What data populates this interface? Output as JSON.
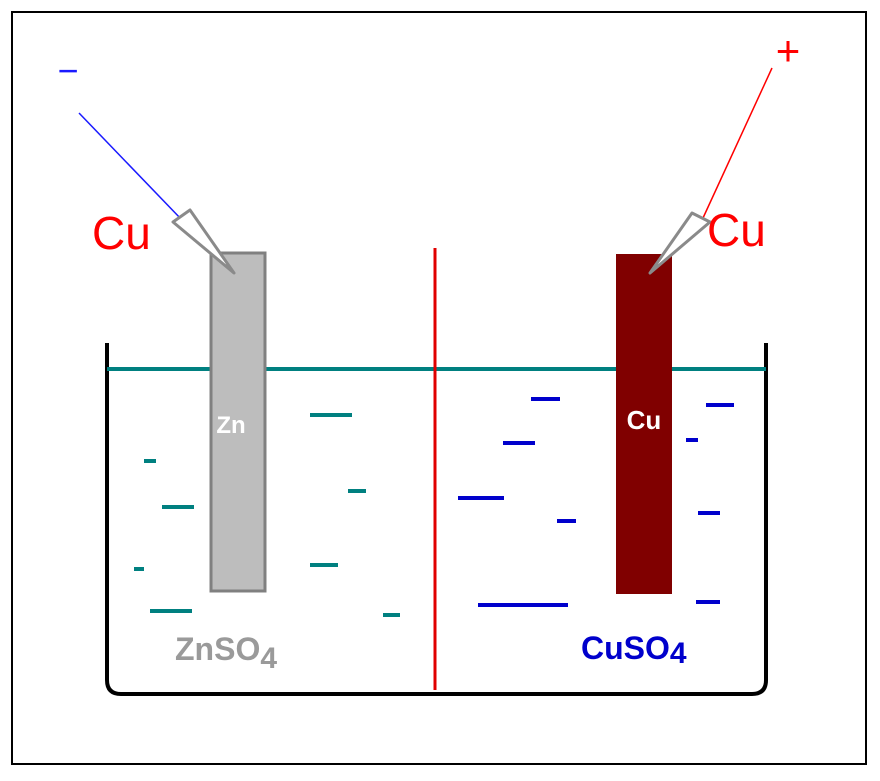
{
  "labels": {
    "minus_terminal": "−",
    "plus_terminal": "+",
    "left_wire_metal": "Cu",
    "right_wire_metal": "Cu",
    "zinc_electrode": "Zn",
    "copper_electrode": "Cu",
    "left_solution_main": "ZnSO",
    "left_solution_sub": "4",
    "right_solution_main": "CuSO",
    "right_solution_sub": "4"
  },
  "colors": {
    "wire_negative": "#1a1aff",
    "wire_positive": "#ff0000",
    "label_red": "#ff0000",
    "zinc_fill": "#bdbdbd",
    "zinc_stroke": "#808080",
    "copper_fill": "#800000",
    "liquid_line": "#008080",
    "zn_ions": "#008080",
    "cu_ions": "#0000cc",
    "membrane": "#e00000",
    "beaker": "#000000",
    "frame": "#000000"
  }
}
